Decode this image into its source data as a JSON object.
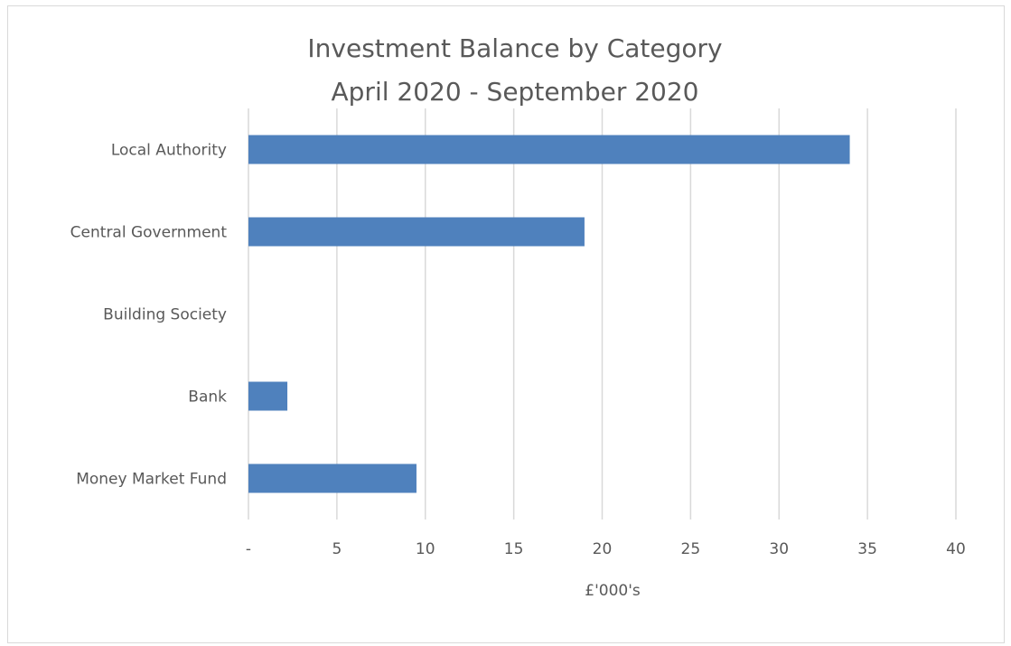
{
  "chart_data": {
    "type": "bar",
    "orientation": "horizontal",
    "title": [
      "Investment Balance by Category",
      "April 2020 - September 2020"
    ],
    "categories": [
      "Local Authority",
      "Central Government",
      "Building Society",
      "Bank",
      "Money Market Fund"
    ],
    "values": [
      34,
      19,
      0,
      2.2,
      9.5
    ],
    "xlabel": "£'000's",
    "ylabel": "",
    "xlim": [
      0,
      40
    ],
    "xticks": [
      0,
      5,
      10,
      15,
      20,
      25,
      30,
      35,
      40
    ],
    "xtick_labels": [
      "-",
      "5",
      "10",
      "15",
      "20",
      "25",
      "30",
      "35",
      "40"
    ],
    "grid": "vertical",
    "legend": "none",
    "colors": {
      "bar": "#4f81bd"
    }
  }
}
